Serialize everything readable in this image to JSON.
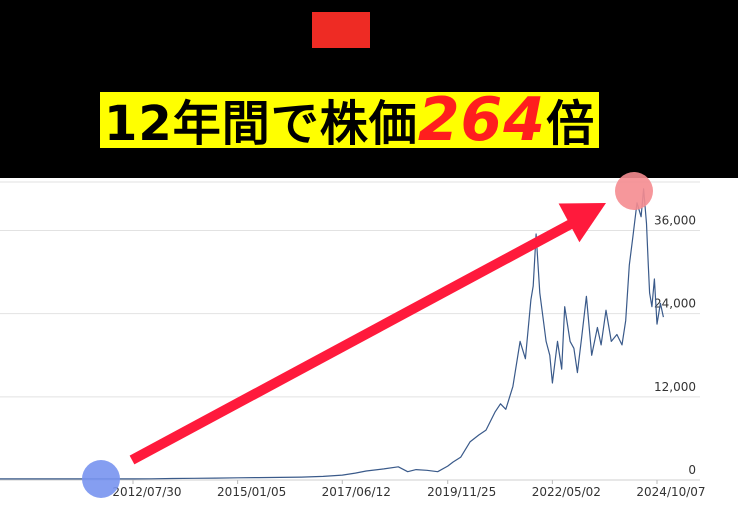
{
  "header": {
    "headline_prefix": "12年間で株価",
    "headline_number": "264",
    "headline_suffix": "倍",
    "badge_color": "#ee2b24",
    "highlight_color": "#ffff00",
    "number_color": "#ff1e1e"
  },
  "chart_data": {
    "type": "line",
    "x_ticks": [
      "2012/07/30",
      "2015/01/05",
      "2017/06/12",
      "2019/11/25",
      "2022/05/02",
      "2024/10/07"
    ],
    "y_ticks": [
      0,
      12000,
      24000,
      36000
    ],
    "y_tick_labels": [
      "0",
      "12,000",
      "24,000",
      "36,000"
    ],
    "ylim": [
      0,
      43000
    ],
    "xlim": [
      "2012/07/30",
      "2024/12/15"
    ],
    "grid": true,
    "y_axis_side": "right",
    "line_color": "#3a5a8a",
    "series": [
      {
        "x": [
          "2012/07/30",
          "2013/01/01",
          "2013/07/01",
          "2014/01/01",
          "2014/07/01",
          "2015/01/05",
          "2015/07/01",
          "2016/01/01",
          "2016/07/01",
          "2017/01/01",
          "2017/06/12",
          "2017/10/01",
          "2018/01/01",
          "2018/06/01",
          "2018/10/01",
          "2018/12/20",
          "2019/03/01",
          "2019/06/01",
          "2019/09/01",
          "2019/11/25",
          "2020/01/10",
          "2020/03/15",
          "2020/06/01",
          "2020/08/15",
          "2020/10/15",
          "2020/12/31",
          "2021/02/15",
          "2021/04/01",
          "2021/06/01",
          "2021/08/01",
          "2021/09/15",
          "2021/11/01",
          "2021/11/20",
          "2021/12/15",
          "2022/01/15",
          "2022/02/15",
          "2022/03/10",
          "2022/04/10",
          "2022/05/02",
          "2022/06/15",
          "2022/07/20",
          "2022/08/15",
          "2022/09/30",
          "2022/11/01",
          "2022/12/01",
          "2023/01/05",
          "2023/02/15",
          "2023/04/01",
          "2023/05/20",
          "2023/06/20",
          "2023/08/01",
          "2023/09/15",
          "2023/11/01",
          "2023/12/15",
          "2024/01/15",
          "2024/02/15",
          "2024/03/15",
          "2024/04/20",
          "2024/05/25",
          "2024/06/15",
          "2024/07/10",
          "2024/07/25",
          "2024/08/05",
          "2024/08/25",
          "2024/09/15",
          "2024/10/07",
          "2024/11/05",
          "2024/11/30"
        ],
        "y": [
          160,
          180,
          220,
          250,
          280,
          320,
          350,
          380,
          420,
          520,
          700,
          1000,
          1300,
          1600,
          1900,
          1200,
          1500,
          1400,
          1200,
          2000,
          2600,
          3300,
          5500,
          6500,
          7200,
          9800,
          11000,
          10200,
          13500,
          20000,
          17500,
          26000,
          28000,
          35500,
          27000,
          23000,
          20000,
          18000,
          14000,
          20000,
          16000,
          25000,
          20000,
          19000,
          15500,
          20500,
          26500,
          18000,
          22000,
          19500,
          24500,
          20000,
          21000,
          19500,
          23000,
          31000,
          35000,
          40000,
          38000,
          42000,
          37000,
          31000,
          27000,
          25000,
          29000,
          22500,
          25500,
          23500
        ]
      }
    ]
  },
  "annotations": {
    "arrow_color": "#ff1a3c",
    "start_marker_color": "#7893f0",
    "end_marker_color": "#f58c90"
  }
}
